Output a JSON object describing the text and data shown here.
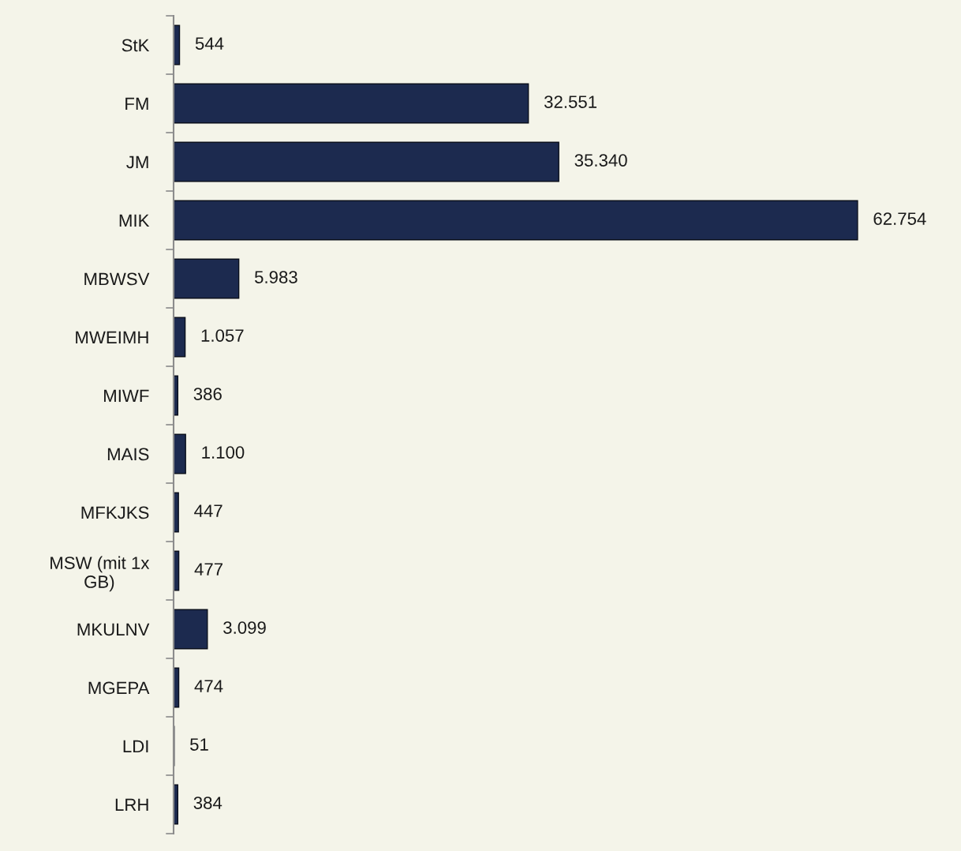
{
  "chart_data": {
    "type": "bar",
    "orientation": "horizontal",
    "categories": [
      "StK",
      "FM",
      "JM",
      "MIK",
      "MBWSV",
      "MWEIMH",
      "MIWF",
      "MAIS",
      "MFKJKS",
      "MSW (mit 1x\nGB)",
      "MKULNV",
      "MGEPA",
      "LDI",
      "LRH"
    ],
    "values": [
      544,
      32551,
      35340,
      62754,
      5983,
      1057,
      386,
      1100,
      447,
      477,
      3099,
      474,
      51,
      384
    ],
    "value_labels": [
      "544",
      "32.551",
      "35.340",
      "62.754",
      "5.983",
      "1.057",
      "386",
      "1.100",
      "447",
      "477",
      "3.099",
      "474",
      "51",
      "384"
    ],
    "color": "#1c2a4f",
    "tick_labels": "y"
  }
}
